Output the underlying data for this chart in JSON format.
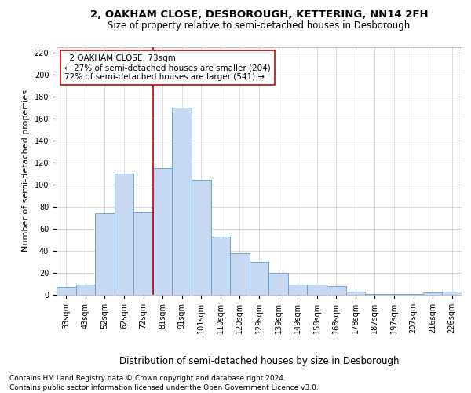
{
  "title": "2, OAKHAM CLOSE, DESBOROUGH, KETTERING, NN14 2FH",
  "subtitle": "Size of property relative to semi-detached houses in Desborough",
  "xlabel": "Distribution of semi-detached houses by size in Desborough",
  "ylabel": "Number of semi-detached properties",
  "footer1": "Contains HM Land Registry data © Crown copyright and database right 2024.",
  "footer2": "Contains public sector information licensed under the Open Government Licence v3.0.",
  "annotation_title": "2 OAKHAM CLOSE: 73sqm",
  "annotation_line1": "← 27% of semi-detached houses are smaller (204)",
  "annotation_line2": "72% of semi-detached houses are larger (541) →",
  "categories": [
    "33sqm",
    "43sqm",
    "52sqm",
    "62sqm",
    "72sqm",
    "81sqm",
    "91sqm",
    "101sqm",
    "110sqm",
    "120sqm",
    "129sqm",
    "139sqm",
    "149sqm",
    "158sqm",
    "168sqm",
    "178sqm",
    "187sqm",
    "197sqm",
    "207sqm",
    "216sqm",
    "226sqm"
  ],
  "bar_heights": [
    7,
    9,
    74,
    110,
    75,
    115,
    170,
    104,
    53,
    38,
    30,
    20,
    9,
    9,
    8,
    3,
    1,
    1,
    1,
    2,
    3
  ],
  "bar_color": "#c6d9f0",
  "bar_edge_color": "#5b9bd5",
  "vline_color": "#cc0000",
  "annotation_box_edge": "#cc0000",
  "ylim": [
    0,
    225
  ],
  "yticks": [
    0,
    20,
    40,
    60,
    80,
    100,
    120,
    140,
    160,
    180,
    200,
    220
  ],
  "background_color": "#ffffff",
  "grid_color": "#cccccc",
  "title_fontsize": 9.5,
  "subtitle_fontsize": 8.5,
  "ylabel_fontsize": 8,
  "xlabel_fontsize": 8.5,
  "tick_fontsize": 7,
  "annotation_fontsize": 7.5,
  "footer_fontsize": 6.5
}
